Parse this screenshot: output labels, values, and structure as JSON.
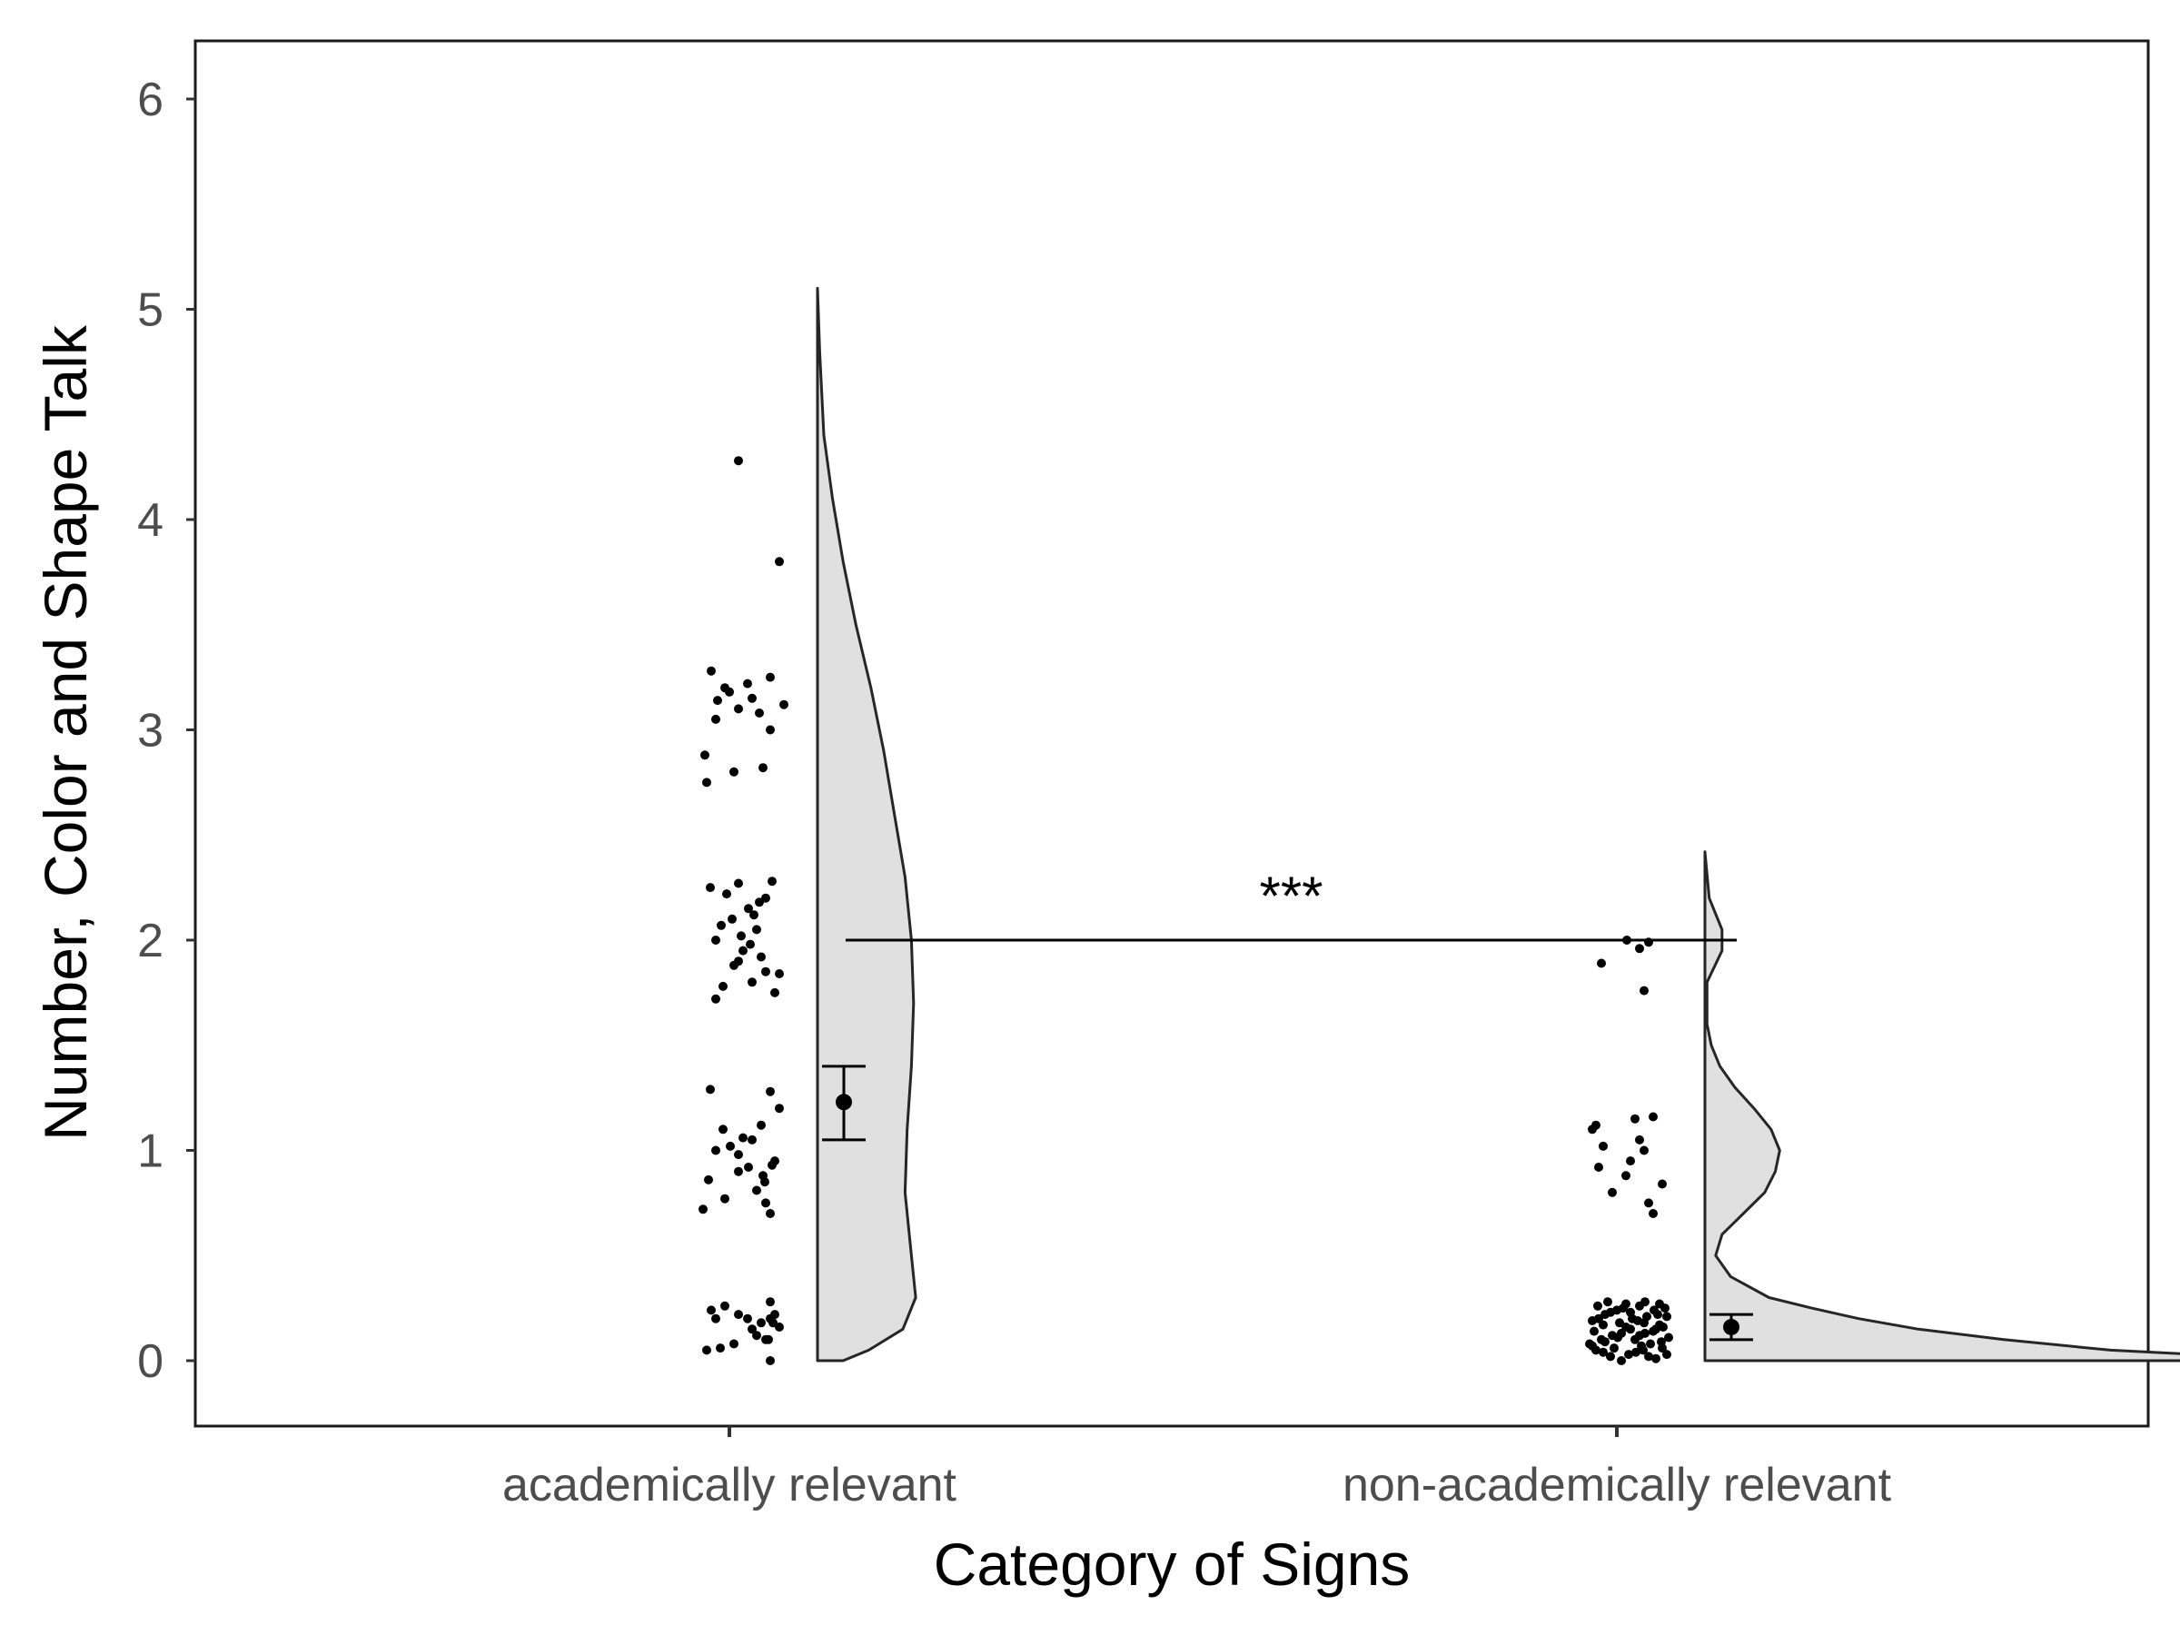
{
  "chart_data": {
    "type": "raincloud",
    "title": "",
    "xlabel": "Category of Signs",
    "ylabel": "Number, Color and Shape Talk",
    "ylim": [
      -0.3,
      6.3
    ],
    "yticks": [
      0,
      1,
      2,
      3,
      4,
      5,
      6
    ],
    "grid": false,
    "legend": "none",
    "categories": [
      "academically relevant",
      "non-academically relevant"
    ],
    "colors": {
      "violin_fill": "#e0e0e0",
      "outline": "#262626",
      "points": "#000000"
    },
    "groups": [
      {
        "category": "academically relevant",
        "mean": 1.23,
        "ci": [
          1.05,
          1.4
        ],
        "density_max": 5.1,
        "density": [
          [
            0.0,
            0.12
          ],
          [
            0.05,
            0.24
          ],
          [
            0.15,
            0.4
          ],
          [
            0.3,
            0.46
          ],
          [
            0.5,
            0.44
          ],
          [
            0.8,
            0.41
          ],
          [
            1.1,
            0.42
          ],
          [
            1.4,
            0.44
          ],
          [
            1.7,
            0.45
          ],
          [
            2.0,
            0.44
          ],
          [
            2.3,
            0.41
          ],
          [
            2.6,
            0.36
          ],
          [
            2.9,
            0.31
          ],
          [
            3.2,
            0.25
          ],
          [
            3.5,
            0.18
          ],
          [
            3.8,
            0.12
          ],
          [
            4.1,
            0.07
          ],
          [
            4.4,
            0.03
          ],
          [
            4.8,
            0.01
          ],
          [
            5.1,
            0.0
          ]
        ],
        "points": [
          [
            0.2,
            -0.3
          ],
          [
            0.05,
            -0.4
          ],
          [
            0.08,
            -0.1
          ],
          [
            0.15,
            0.1
          ],
          [
            0.22,
            0.35
          ],
          [
            0.18,
            0.2
          ],
          [
            0.26,
            -0.2
          ],
          [
            0.1,
            0.25
          ],
          [
            0.0,
            0.3
          ],
          [
            0.22,
            -0.05
          ],
          [
            0.12,
            0.15
          ],
          [
            0.28,
            0.3
          ],
          [
            0.24,
            -0.35
          ],
          [
            0.06,
            -0.25
          ],
          [
            0.16,
            0.4
          ],
          [
            0.2,
            0.05
          ],
          [
            0.2,
            0.3
          ],
          [
            0.1,
            0.28
          ],
          [
            0.18,
            0.33
          ],
          [
            0.72,
            -0.44
          ],
          [
            0.77,
            -0.2
          ],
          [
            0.86,
            -0.38
          ],
          [
            0.9,
            -0.05
          ],
          [
            1.0,
            -0.3
          ],
          [
            1.05,
            0.1
          ],
          [
            0.93,
            0.32
          ],
          [
            1.1,
            -0.22
          ],
          [
            1.28,
            0.3
          ],
          [
            1.29,
            -0.36
          ],
          [
            1.2,
            0.4
          ],
          [
            0.81,
            0.15
          ],
          [
            0.95,
            0.35
          ],
          [
            0.75,
            0.25
          ],
          [
            1.02,
            -0.14
          ],
          [
            0.88,
            0.22
          ],
          [
            1.06,
            0.0
          ],
          [
            0.98,
            -0.05
          ],
          [
            1.12,
            0.2
          ],
          [
            0.92,
            0.06
          ],
          [
            0.85,
            0.24
          ],
          [
            0.7,
            0.3
          ],
          [
            1.72,
            -0.3
          ],
          [
            1.78,
            -0.22
          ],
          [
            1.8,
            0.1
          ],
          [
            1.85,
            0.25
          ],
          [
            1.9,
            -0.05
          ],
          [
            1.95,
            0.0
          ],
          [
            2.0,
            -0.3
          ],
          [
            2.05,
            0.15
          ],
          [
            2.1,
            -0.12
          ],
          [
            2.15,
            0.06
          ],
          [
            2.2,
            0.25
          ],
          [
            2.22,
            -0.18
          ],
          [
            2.28,
            0.32
          ],
          [
            2.25,
            -0.36
          ],
          [
            1.92,
            0.2
          ],
          [
            2.02,
            -0.02
          ],
          [
            1.75,
            0.35
          ],
          [
            2.12,
            0.12
          ],
          [
            1.88,
            -0.1
          ],
          [
            2.18,
            0.18
          ],
          [
            2.07,
            -0.24
          ],
          [
            1.98,
            0.08
          ],
          [
            2.27,
            -0.05
          ],
          [
            1.84,
            0.4
          ],
          [
            2.75,
            -0.4
          ],
          [
            2.8,
            -0.1
          ],
          [
            2.82,
            0.22
          ],
          [
            2.88,
            -0.42
          ],
          [
            3.05,
            -0.3
          ],
          [
            3.1,
            -0.05
          ],
          [
            3.15,
            0.1
          ],
          [
            3.2,
            -0.2
          ],
          [
            3.25,
            0.3
          ],
          [
            3.28,
            -0.35
          ],
          [
            3.0,
            0.3
          ],
          [
            3.12,
            0.45
          ],
          [
            3.18,
            -0.15
          ],
          [
            3.22,
            0.05
          ],
          [
            3.08,
            0.18
          ],
          [
            3.14,
            -0.28
          ],
          [
            3.8,
            0.4
          ],
          [
            4.28,
            -0.05
          ]
        ]
      },
      {
        "category": "non-academically relevant",
        "mean": 0.16,
        "ci": [
          0.1,
          0.22
        ],
        "density_max": 2.42,
        "density": [
          [
            0.0,
            2.8
          ],
          [
            0.02,
            2.5
          ],
          [
            0.05,
            1.9
          ],
          [
            0.1,
            1.4
          ],
          [
            0.15,
            1.0
          ],
          [
            0.2,
            0.72
          ],
          [
            0.25,
            0.5
          ],
          [
            0.3,
            0.3
          ],
          [
            0.4,
            0.12
          ],
          [
            0.5,
            0.05
          ],
          [
            0.6,
            0.08
          ],
          [
            0.7,
            0.18
          ],
          [
            0.8,
            0.28
          ],
          [
            0.9,
            0.33
          ],
          [
            1.0,
            0.35
          ],
          [
            1.1,
            0.31
          ],
          [
            1.2,
            0.23
          ],
          [
            1.3,
            0.14
          ],
          [
            1.4,
            0.07
          ],
          [
            1.5,
            0.03
          ],
          [
            1.6,
            0.01
          ],
          [
            1.8,
            0.01
          ],
          [
            1.95,
            0.08
          ],
          [
            2.05,
            0.08
          ],
          [
            2.2,
            0.02
          ],
          [
            2.42,
            0.0
          ]
        ],
        "points": [
          [
            0.0,
            -0.1
          ],
          [
            0.02,
            0.2
          ],
          [
            0.04,
            -0.3
          ],
          [
            0.06,
            0.35
          ],
          [
            0.08,
            -0.45
          ],
          [
            0.1,
            0.05
          ],
          [
            0.12,
            -0.2
          ],
          [
            0.14,
            0.25
          ],
          [
            0.16,
            -0.05
          ],
          [
            0.18,
            0.15
          ],
          [
            0.2,
            -0.35
          ],
          [
            0.22,
            0.3
          ],
          [
            0.24,
            -0.15
          ],
          [
            0.26,
            0.1
          ],
          [
            0.28,
            -0.25
          ],
          [
            0.03,
            0.4
          ],
          [
            0.05,
            -0.38
          ],
          [
            0.07,
            0.12
          ],
          [
            0.09,
            -0.28
          ],
          [
            0.11,
            0.42
          ],
          [
            0.13,
            -0.1
          ],
          [
            0.15,
            0.0
          ],
          [
            0.17,
            0.32
          ],
          [
            0.19,
            -0.42
          ],
          [
            0.21,
            0.18
          ],
          [
            0.23,
            -0.22
          ],
          [
            0.25,
            0.38
          ],
          [
            0.27,
            -0.05
          ],
          [
            0.01,
            0.28
          ],
          [
            0.04,
            0.06
          ],
          [
            0.06,
            -0.18
          ],
          [
            0.08,
            0.22
          ],
          [
            0.1,
            -0.32
          ],
          [
            0.12,
            0.1
          ],
          [
            0.14,
            -0.4
          ],
          [
            0.16,
            0.36
          ],
          [
            0.18,
            -0.12
          ],
          [
            0.2,
            0.02
          ],
          [
            0.22,
            -0.28
          ],
          [
            0.24,
            0.26
          ],
          [
            0.26,
            -0.36
          ],
          [
            0.28,
            0.16
          ],
          [
            0.02,
            -0.22
          ],
          [
            0.09,
            0.34
          ],
          [
            0.13,
            0.16
          ],
          [
            0.17,
            -0.3
          ],
          [
            0.21,
            0.4
          ],
          [
            0.25,
            -0.08
          ],
          [
            0.05,
            0.14
          ],
          [
            0.11,
            -0.14
          ],
          [
            0.15,
            0.28
          ],
          [
            0.19,
            0.08
          ],
          [
            0.23,
            0.0
          ],
          [
            0.27,
            0.32
          ],
          [
            0.07,
            -0.42
          ],
          [
            0.03,
            -0.02
          ],
          [
            0.7,
            0.25
          ],
          [
            0.75,
            0.2
          ],
          [
            0.8,
            -0.2
          ],
          [
            0.84,
            0.35
          ],
          [
            0.88,
            -0.05
          ],
          [
            0.92,
            -0.35
          ],
          [
            0.95,
            0.0
          ],
          [
            1.0,
            0.15
          ],
          [
            1.02,
            -0.3
          ],
          [
            1.05,
            0.1
          ],
          [
            1.1,
            -0.42
          ],
          [
            1.12,
            -0.38
          ],
          [
            1.15,
            0.05
          ],
          [
            1.16,
            0.25
          ],
          [
            1.76,
            0.15
          ],
          [
            1.89,
            -0.32
          ],
          [
            1.96,
            0.1
          ],
          [
            2.0,
            -0.04
          ],
          [
            1.99,
            0.2
          ]
        ]
      }
    ],
    "comparison": {
      "y": 2.0,
      "label": "***"
    }
  }
}
